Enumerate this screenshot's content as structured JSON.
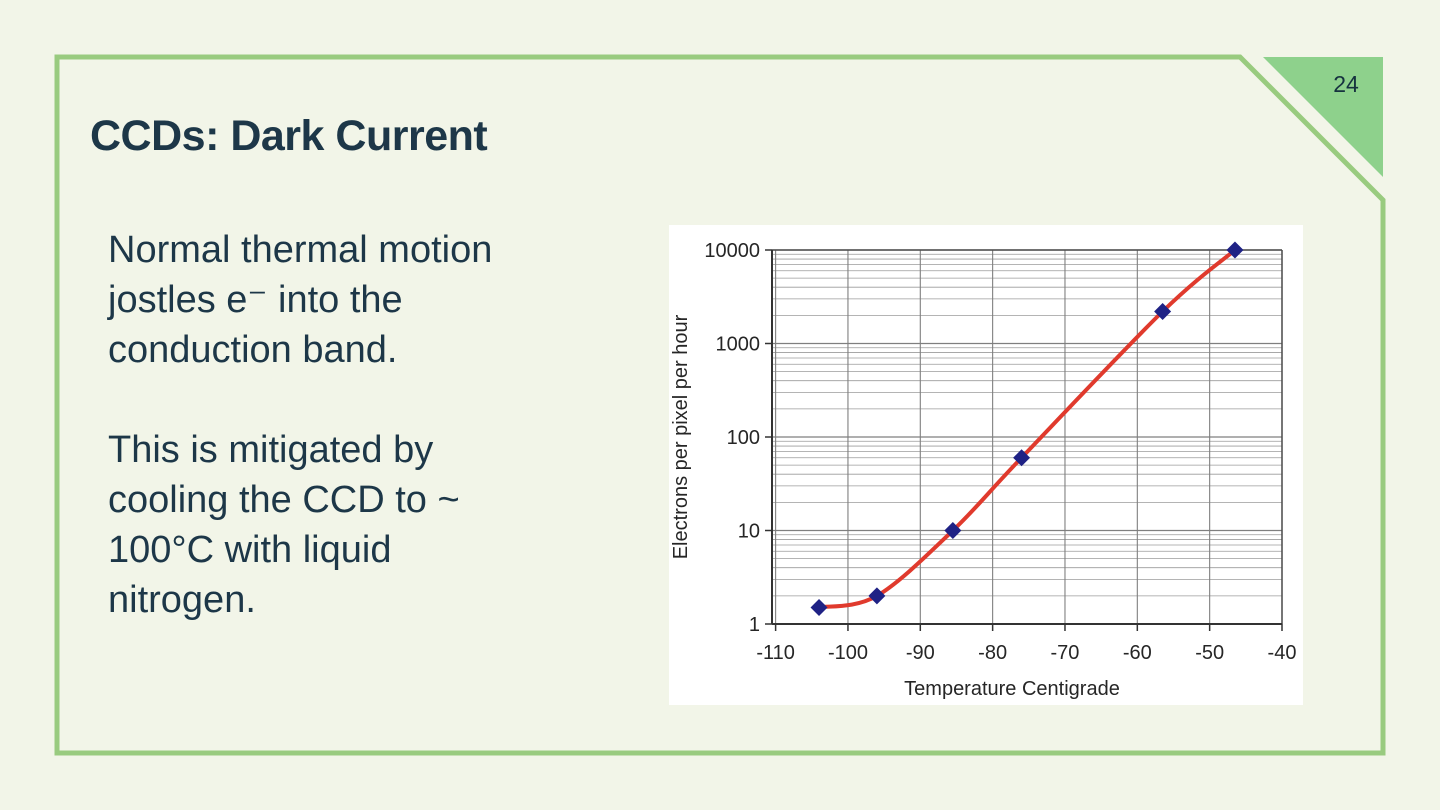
{
  "slide": {
    "page_number": "24",
    "title": "CCDs: Dark Current",
    "body": {
      "paragraph1_lines": [
        "Normal thermal motion",
        "jostles e⁻ into the",
        "conduction band."
      ],
      "paragraph2_lines": [
        "This is mitigated by",
        "cooling the CCD to ~",
        "100°C with liquid",
        "nitrogen."
      ]
    }
  },
  "colors": {
    "background": "#f2f5e8",
    "frame_border": "#99cb7f",
    "corner_triangle": "#8ed18c",
    "text": "#1d3748",
    "chart_panel": "#ffffff",
    "chart_line": "#e03a2d",
    "chart_marker": "#1f2285",
    "gridline_minor": "#9b9b9b",
    "gridline_major": "#7f7f7f",
    "axis": "#333333"
  },
  "chart_data": {
    "type": "line",
    "title": "",
    "xlabel": "Temperature Centigrade",
    "ylabel": "Electrons per pixel per hour",
    "x_ticks": [
      -110,
      -100,
      -90,
      -80,
      -70,
      -60,
      -50,
      -40
    ],
    "y_ticks": [
      1,
      10,
      100,
      1000,
      10000
    ],
    "xlim": [
      -110.5,
      -40
    ],
    "ylim": [
      1,
      10000
    ],
    "y_scale": "log",
    "grid": "on",
    "legend": "none",
    "series": [
      {
        "name": "dark current",
        "x": [
          -104,
          -96,
          -85.5,
          -76,
          -56.5,
          -46.5
        ],
        "y": [
          1.5,
          2,
          10,
          60,
          2200,
          10000
        ],
        "marker": "diamond"
      }
    ]
  }
}
